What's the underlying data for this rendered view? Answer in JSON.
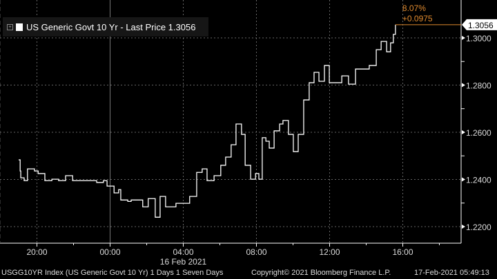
{
  "legend": {
    "label": "US Generic Govt 10 Yr - Last Price 1.3056",
    "color": "#ffffff"
  },
  "change": {
    "percent": "8.07%",
    "absolute": "+0.0975",
    "color": "#e08a2e"
  },
  "footer": {
    "ticker": "USGG10YR Index (US Generic Govt 10 Yr) 1 Days 1 Seven Days",
    "copyright": "Copyright© 2021 Bloomberg Finance L.P.",
    "timestamp": "17-Feb-2021 05:49:13"
  },
  "chart_data": {
    "type": "line",
    "step": true,
    "title": "",
    "xlabel": "16 Feb 2021",
    "ylabel": "",
    "x_ticks": [
      "20:00",
      "00:00",
      "04:00",
      "08:00",
      "12:00",
      "16:00"
    ],
    "y_ticks": [
      "1.2200",
      "1.2400",
      "1.2600",
      "1.2800",
      "1.3000"
    ],
    "ylim": [
      1.213,
      1.3165
    ],
    "xlim": [
      "2021-02-15 19:00",
      "2021-02-16 19:00"
    ],
    "last_value_label": "1.3056",
    "last_value": 1.3056,
    "grid": true,
    "line_color": "#ffffff",
    "points": [
      [
        "2021-02-15 19:00",
        1.2483
      ],
      [
        "2021-02-15 19:05",
        1.2436
      ],
      [
        "2021-02-15 19:07",
        1.2407
      ],
      [
        "2021-02-15 19:18",
        1.2395
      ],
      [
        "2021-02-15 19:29",
        1.2445
      ],
      [
        "2021-02-15 19:52",
        1.2436
      ],
      [
        "2021-02-15 20:04",
        1.2425
      ],
      [
        "2021-02-15 20:26",
        1.2395
      ],
      [
        "2021-02-15 20:49",
        1.2401
      ],
      [
        "2021-02-15 21:11",
        1.2395
      ],
      [
        "2021-02-15 21:34",
        1.2416
      ],
      [
        "2021-02-15 21:57",
        1.2395
      ],
      [
        "2021-02-15 22:19",
        1.2395
      ],
      [
        "2021-02-15 22:53",
        1.2395
      ],
      [
        "2021-02-15 23:16",
        1.2387
      ],
      [
        "2021-02-15 23:38",
        1.2395
      ],
      [
        "2021-02-15 23:50",
        1.2372
      ],
      [
        "2021-02-16 00:13",
        1.2343
      ],
      [
        "2021-02-16 00:28",
        1.2357
      ],
      [
        "2021-02-16 00:35",
        1.2313
      ],
      [
        "2021-02-16 00:58",
        1.2307
      ],
      [
        "2021-02-16 01:09",
        1.2313
      ],
      [
        "2021-02-16 01:32",
        1.2313
      ],
      [
        "2021-02-16 01:47",
        1.2284
      ],
      [
        "2021-02-16 02:05",
        1.2319
      ],
      [
        "2021-02-16 02:28",
        1.224
      ],
      [
        "2021-02-16 02:44",
        1.2328
      ],
      [
        "2021-02-16 03:02",
        1.2284
      ],
      [
        "2021-02-16 03:36",
        1.2299
      ],
      [
        "2021-02-16 03:59",
        1.2299
      ],
      [
        "2021-02-16 04:21",
        1.2328
      ],
      [
        "2021-02-16 04:44",
        1.243
      ],
      [
        "2021-02-16 05:02",
        1.2445
      ],
      [
        "2021-02-16 05:18",
        1.2395
      ],
      [
        "2021-02-16 05:41",
        1.2416
      ],
      [
        "2021-02-16 06:03",
        1.246
      ],
      [
        "2021-02-16 06:19",
        1.2495
      ],
      [
        "2021-02-16 06:37",
        1.2547
      ],
      [
        "2021-02-16 06:53",
        1.2635
      ],
      [
        "2021-02-16 07:11",
        1.2591
      ],
      [
        "2021-02-16 07:23",
        1.246
      ],
      [
        "2021-02-16 07:41",
        1.2401
      ],
      [
        "2021-02-16 07:57",
        1.2425
      ],
      [
        "2021-02-16 08:08",
        1.2401
      ],
      [
        "2021-02-16 08:19",
        1.2577
      ],
      [
        "2021-02-16 08:31",
        1.2562
      ],
      [
        "2021-02-16 08:42",
        1.2533
      ],
      [
        "2021-02-16 08:58",
        1.2606
      ],
      [
        "2021-02-16 09:16",
        1.2635
      ],
      [
        "2021-02-16 09:27",
        1.265
      ],
      [
        "2021-02-16 09:45",
        1.2591
      ],
      [
        "2021-02-16 10:01",
        1.2518
      ],
      [
        "2021-02-16 10:17",
        1.2591
      ],
      [
        "2021-02-16 10:35",
        1.2737
      ],
      [
        "2021-02-16 10:53",
        1.281
      ],
      [
        "2021-02-16 11:09",
        1.2854
      ],
      [
        "2021-02-16 11:25",
        1.2816
      ],
      [
        "2021-02-16 11:43",
        1.2883
      ],
      [
        "2021-02-16 11:59",
        1.281
      ],
      [
        "2021-02-16 12:17",
        1.281
      ],
      [
        "2021-02-16 12:40",
        1.2839
      ],
      [
        "2021-02-16 13:02",
        1.2804
      ],
      [
        "2021-02-16 13:25",
        1.2868
      ],
      [
        "2021-02-16 13:47",
        1.2868
      ],
      [
        "2021-02-16 14:10",
        1.2883
      ],
      [
        "2021-02-16 14:33",
        1.295
      ],
      [
        "2021-02-16 14:49",
        1.2985
      ],
      [
        "2021-02-16 15:07",
        1.2941
      ],
      [
        "2021-02-16 15:20",
        1.2979
      ],
      [
        "2021-02-16 15:29",
        1.3015
      ],
      [
        "2021-02-16 15:36",
        1.3056
      ]
    ]
  }
}
